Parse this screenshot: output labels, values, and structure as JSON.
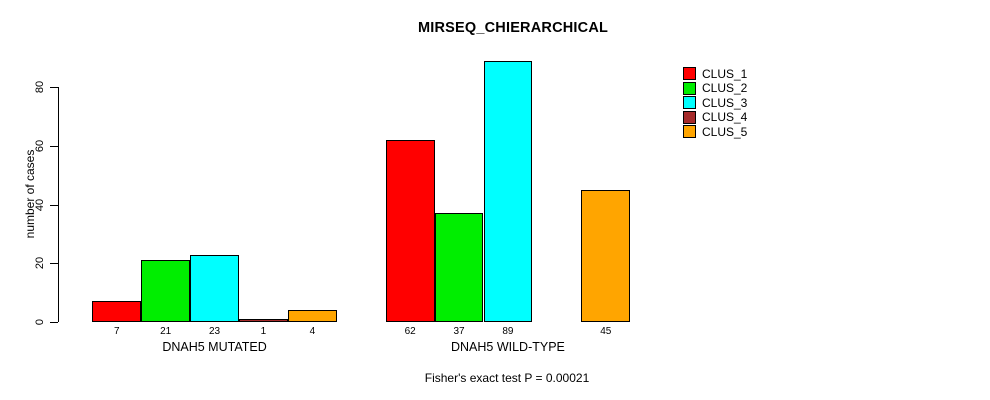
{
  "chart_data": {
    "type": "bar",
    "title": "MIRSEQ_CHIERARCHICAL",
    "xlabel": "",
    "ylabel": "number of cases",
    "ylim": [
      0,
      80
    ],
    "yticks": [
      0,
      20,
      40,
      60,
      80
    ],
    "grid": false,
    "categories": [
      "DNAH5 MUTATED",
      "DNAH5 WILD-TYPE"
    ],
    "series": [
      {
        "name": "CLUS_1",
        "color": "#ff0000",
        "values": [
          7,
          62
        ]
      },
      {
        "name": "CLUS_2",
        "color": "#00ee00",
        "values": [
          21,
          37
        ]
      },
      {
        "name": "CLUS_3",
        "color": "#00ffff",
        "values": [
          23,
          89
        ]
      },
      {
        "name": "CLUS_4",
        "color": "#a52a2a",
        "values": [
          1,
          0
        ]
      },
      {
        "name": "CLUS_5",
        "color": "#ffa500",
        "values": [
          4,
          45
        ]
      }
    ],
    "bar_value_labels": [
      [
        "7",
        "21",
        "23",
        "1",
        "4"
      ],
      [
        "62",
        "37",
        "89",
        "",
        "45"
      ]
    ],
    "legend": {
      "position": "top-right",
      "entries": [
        "CLUS_1",
        "CLUS_2",
        "CLUS_3",
        "CLUS_4",
        "CLUS_5"
      ]
    },
    "annotation": "Fisher's exact test P = 0.00021",
    "colors": {
      "axis": "#000000",
      "bar_border": "#000000",
      "background": "#ffffff",
      "text": "#000000"
    }
  }
}
